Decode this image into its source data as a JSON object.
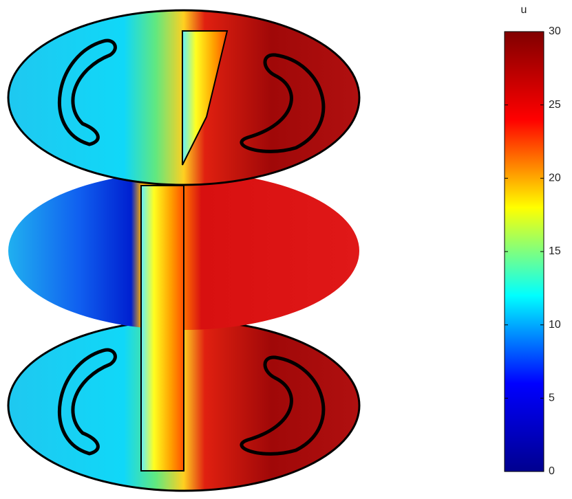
{
  "chart_data": {
    "type": "colorbar3d",
    "colorbar": {
      "label": "u",
      "lim": [
        0,
        30
      ],
      "ticks": [
        0,
        5,
        10,
        15,
        20,
        25,
        30
      ],
      "colormap": [
        "#00008f",
        "#0000ff",
        "#00ffff",
        "#ffff00",
        "#ff0000",
        "#800000"
      ]
    }
  }
}
